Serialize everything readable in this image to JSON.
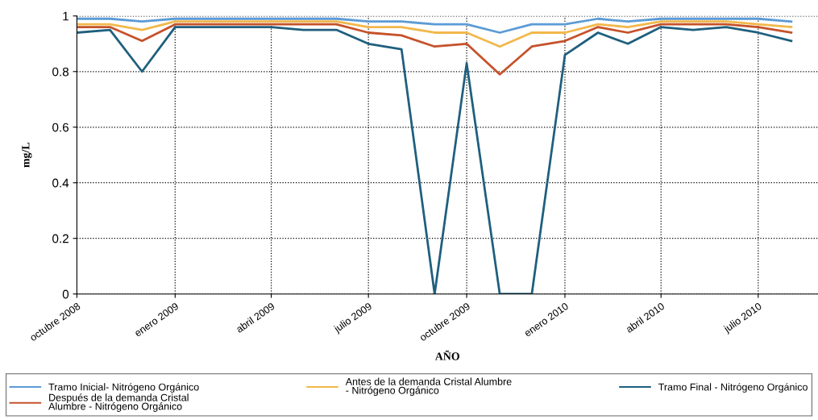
{
  "chart_data": {
    "type": "line",
    "xlabel": "AÑO",
    "ylabel": "mg/L",
    "x": [
      "2008-10",
      "2008-11",
      "2008-12",
      "2009-01",
      "2009-02",
      "2009-03",
      "2009-04",
      "2009-05",
      "2009-06",
      "2009-07",
      "2009-08",
      "2009-09",
      "2009-10",
      "2009-11",
      "2009-12",
      "2010-01",
      "2010-02",
      "2010-03",
      "2010-04",
      "2010-05",
      "2010-06",
      "2010-07",
      "2010-08"
    ],
    "series": [
      {
        "name": "Tramo Inicial- Nitrógeno Orgánico",
        "color": "#5b9bd5",
        "values": [
          0.99,
          0.99,
          0.98,
          0.99,
          0.99,
          0.99,
          0.99,
          0.99,
          0.99,
          0.98,
          0.98,
          0.97,
          0.97,
          0.94,
          0.97,
          0.97,
          0.99,
          0.98,
          0.99,
          0.99,
          0.99,
          0.99,
          0.98
        ]
      },
      {
        "name": "Antes de la demanda Cristal Alumbre - Nitrógeno Orgánico",
        "color": "#f2b84b",
        "values": [
          0.97,
          0.97,
          0.95,
          0.98,
          0.98,
          0.98,
          0.98,
          0.98,
          0.98,
          0.96,
          0.96,
          0.94,
          0.94,
          0.89,
          0.94,
          0.94,
          0.97,
          0.96,
          0.98,
          0.98,
          0.98,
          0.97,
          0.96
        ]
      },
      {
        "name": "Después de la demanda Cristal Alumbre - Nitrógeno Orgánico",
        "color": "#c5522a",
        "values": [
          0.96,
          0.96,
          0.91,
          0.97,
          0.97,
          0.97,
          0.97,
          0.97,
          0.97,
          0.94,
          0.93,
          0.89,
          0.9,
          0.79,
          0.89,
          0.91,
          0.96,
          0.94,
          0.97,
          0.97,
          0.97,
          0.96,
          0.94
        ]
      },
      {
        "name": "Tramo Final - Nitrógeno Orgánico",
        "color": "#1f5f7e",
        "values": [
          0.94,
          0.95,
          0.8,
          0.96,
          0.96,
          0.96,
          0.96,
          0.95,
          0.95,
          0.9,
          0.88,
          0,
          0.83,
          0,
          0,
          0.86,
          0.94,
          0.9,
          0.96,
          0.95,
          0.96,
          0.94,
          0.91
        ]
      }
    ],
    "xlim": [
      "2008-10-01",
      "2010-08-26"
    ],
    "xticks": [
      {
        "value": "2008-10",
        "label": "octubre 2008"
      },
      {
        "value": "2009-01",
        "label": "enero 2009"
      },
      {
        "value": "2009-04",
        "label": "abril 2009"
      },
      {
        "value": "2009-07",
        "label": "julio 2009"
      },
      {
        "value": "2009-10",
        "label": "octubre 2009"
      },
      {
        "value": "2010-01",
        "label": "enero 2010"
      },
      {
        "value": "2010-04",
        "label": "abril 2010"
      },
      {
        "value": "2010-07",
        "label": "julio 2010"
      }
    ],
    "ylim": [
      0,
      1
    ],
    "yticks": [
      0,
      0.2,
      0.4,
      0.6,
      0.8,
      1
    ],
    "grid": true,
    "legend": "bottom",
    "marker": "none",
    "line_style": "solid"
  }
}
